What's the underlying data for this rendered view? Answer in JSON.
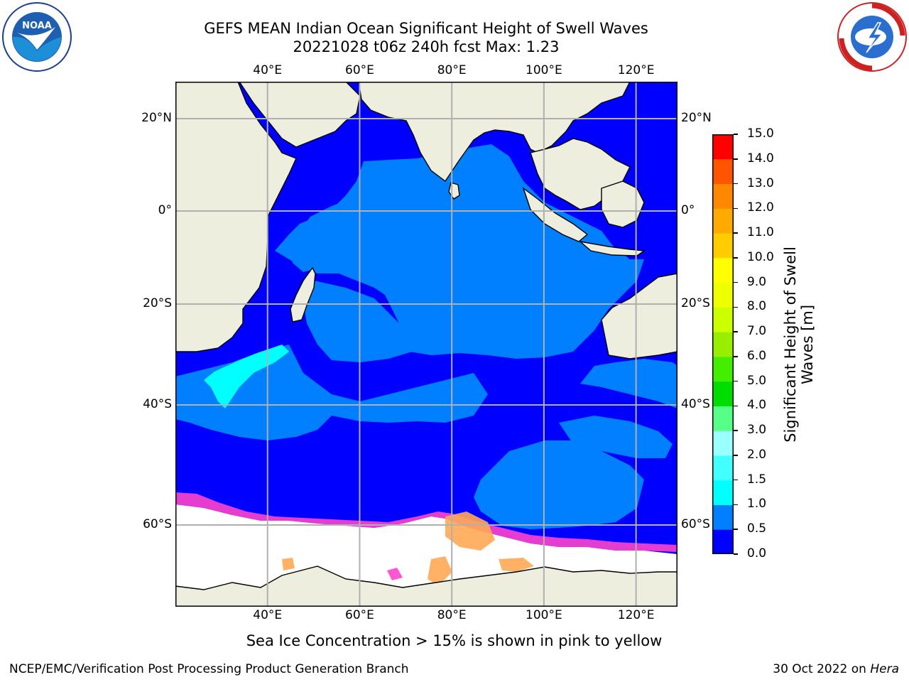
{
  "title": {
    "line1": "GEFS MEAN Indian Ocean Significant Height of Swell Waves",
    "line2": "20221028 t06z 240h fcst   Max: 1.23"
  },
  "logos": {
    "left": {
      "name": "NOAA",
      "icon": "noaa-logo"
    },
    "right": {
      "name": "NATIONAL WEATHER SERVICE",
      "icon": "nws-logo"
    }
  },
  "map": {
    "type": "heatmap",
    "region": "Indian Ocean",
    "lon_range": [
      20,
      129
    ],
    "lat_range": [
      -74,
      28
    ],
    "grid": true,
    "lon_ticks": [
      {
        "value": 40,
        "label": "40°E"
      },
      {
        "value": 60,
        "label": "60°E"
      },
      {
        "value": 80,
        "label": "80°E"
      },
      {
        "value": 100,
        "label": "100°E"
      },
      {
        "value": 120,
        "label": "120°E"
      }
    ],
    "lat_ticks": [
      {
        "value": 20,
        "label": "20°N"
      },
      {
        "value": 0,
        "label": "0°"
      },
      {
        "value": -20,
        "label": "20°S"
      },
      {
        "value": -40,
        "label": "40°S"
      },
      {
        "value": -60,
        "label": "60°S"
      }
    ],
    "colors": {
      "land": "#eeeede",
      "ocean_0": "#0000ff",
      "ocean_05": "#0080ff",
      "ocean_1": "#00ffff",
      "ice": "#ffffff",
      "ice_pink": "#ff44cc",
      "ice_orange": "#ffaa55"
    }
  },
  "colorbar": {
    "label_line1": "Significant Height of Swell",
    "label_line2": "Waves [m]",
    "levels": [
      "0.0",
      "0.5",
      "1.0",
      "1.5",
      "2.0",
      "3.0",
      "4.0",
      "5.0",
      "6.0",
      "7.0",
      "8.0",
      "9.0",
      "10.0",
      "11.0",
      "12.0",
      "13.0",
      "14.0",
      "15.0"
    ],
    "colors": [
      "#0000ff",
      "#0080ff",
      "#00ffff",
      "#44ffff",
      "#99ffff",
      "#55ff88",
      "#00dd00",
      "#44ee00",
      "#99ee00",
      "#ccff00",
      "#eeff00",
      "#ffff00",
      "#ffcc00",
      "#ffaa00",
      "#ff8800",
      "#ff5500",
      "#ff0000"
    ]
  },
  "caption": "Sea Ice Concentration > 15% is shown in pink to yellow",
  "footer": {
    "left": "NCEP/EMC/Verification Post Processing Product Generation Branch",
    "right_prefix": "30 Oct 2022 on ",
    "right_italic": "Hera"
  }
}
